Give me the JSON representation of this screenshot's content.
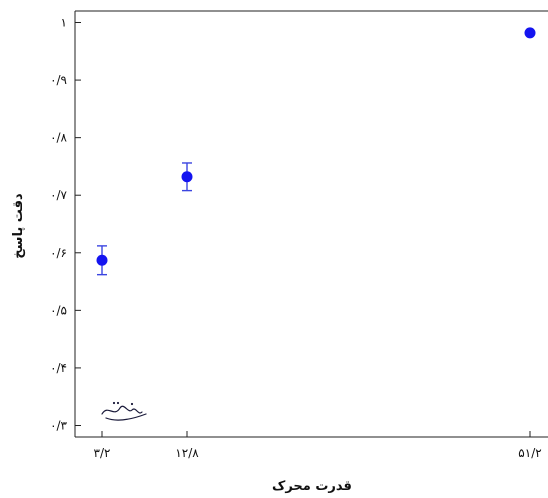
{
  "chart_data": {
    "type": "scatter",
    "title": "",
    "xlabel": "قدرت محرک",
    "ylabel": "دقت پاسخ",
    "xlim": [
      0,
      55
    ],
    "ylim": [
      0.28,
      1.02
    ],
    "x_ticks": [
      {
        "value": 3.2,
        "label": "۳/۲"
      },
      {
        "value": 12.8,
        "label": "۱۲/۸"
      },
      {
        "value": 51.2,
        "label": "۵۱/۲"
      }
    ],
    "y_ticks": [
      {
        "value": 0.3,
        "label": "۰/۳"
      },
      {
        "value": 0.4,
        "label": "۰/۴"
      },
      {
        "value": 0.5,
        "label": "۰/۵"
      },
      {
        "value": 0.6,
        "label": "۰/۶"
      },
      {
        "value": 0.7,
        "label": "۰/۷"
      },
      {
        "value": 0.8,
        "label": "۰/۸"
      },
      {
        "value": 0.9,
        "label": "۰/۹"
      },
      {
        "value": 1.0,
        "label": "۱"
      }
    ],
    "series": [
      {
        "points": [
          {
            "x": 3.2,
            "y": 0.587,
            "err": 0.025
          },
          {
            "x": 12.8,
            "y": 0.732,
            "err": 0.024
          },
          {
            "x": 51.2,
            "y": 0.982,
            "err": 0.003
          }
        ]
      }
    ],
    "grid": false,
    "colors": {
      "point": "#1414f0",
      "error_bar": "#3b45e0",
      "axis": "#222222"
    }
  },
  "logo": {
    "text": "شفاف‌مقد",
    "icon": "calligraphy-logo"
  }
}
